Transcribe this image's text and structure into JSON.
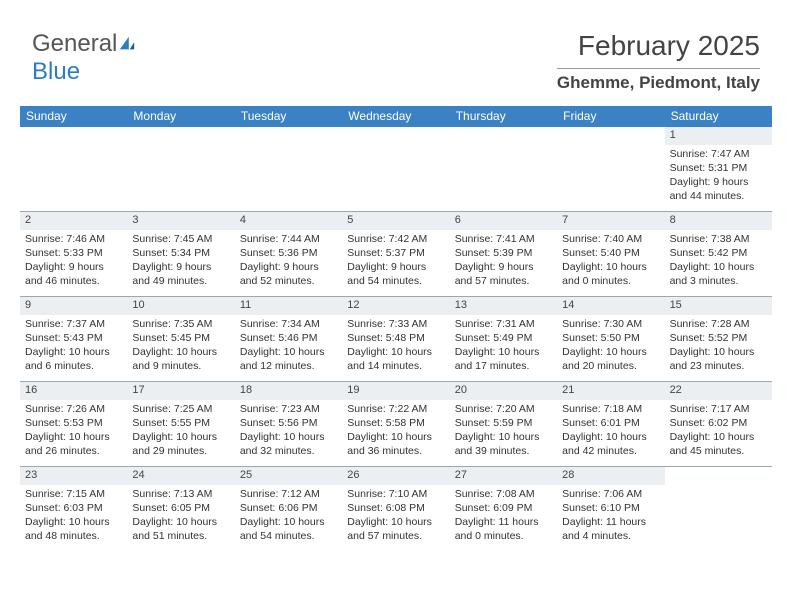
{
  "logo": {
    "line1": "General",
    "line2": "Blue"
  },
  "header": {
    "month": "February 2025",
    "location": "Ghemme, Piedmont, Italy"
  },
  "colors": {
    "header_bar": "#3a82c4",
    "daynum_bg": "#eceff2",
    "rule": "#9aa8b5",
    "logo_blue": "#2d7dc4"
  },
  "day_names": [
    "Sunday",
    "Monday",
    "Tuesday",
    "Wednesday",
    "Thursday",
    "Friday",
    "Saturday"
  ],
  "weeks": [
    [
      {
        "n": "",
        "sr": "",
        "ss": "",
        "dl": ""
      },
      {
        "n": "",
        "sr": "",
        "ss": "",
        "dl": ""
      },
      {
        "n": "",
        "sr": "",
        "ss": "",
        "dl": ""
      },
      {
        "n": "",
        "sr": "",
        "ss": "",
        "dl": ""
      },
      {
        "n": "",
        "sr": "",
        "ss": "",
        "dl": ""
      },
      {
        "n": "",
        "sr": "",
        "ss": "",
        "dl": ""
      },
      {
        "n": "1",
        "sr": "Sunrise: 7:47 AM",
        "ss": "Sunset: 5:31 PM",
        "dl": "Daylight: 9 hours and 44 minutes."
      }
    ],
    [
      {
        "n": "2",
        "sr": "Sunrise: 7:46 AM",
        "ss": "Sunset: 5:33 PM",
        "dl": "Daylight: 9 hours and 46 minutes."
      },
      {
        "n": "3",
        "sr": "Sunrise: 7:45 AM",
        "ss": "Sunset: 5:34 PM",
        "dl": "Daylight: 9 hours and 49 minutes."
      },
      {
        "n": "4",
        "sr": "Sunrise: 7:44 AM",
        "ss": "Sunset: 5:36 PM",
        "dl": "Daylight: 9 hours and 52 minutes."
      },
      {
        "n": "5",
        "sr": "Sunrise: 7:42 AM",
        "ss": "Sunset: 5:37 PM",
        "dl": "Daylight: 9 hours and 54 minutes."
      },
      {
        "n": "6",
        "sr": "Sunrise: 7:41 AM",
        "ss": "Sunset: 5:39 PM",
        "dl": "Daylight: 9 hours and 57 minutes."
      },
      {
        "n": "7",
        "sr": "Sunrise: 7:40 AM",
        "ss": "Sunset: 5:40 PM",
        "dl": "Daylight: 10 hours and 0 minutes."
      },
      {
        "n": "8",
        "sr": "Sunrise: 7:38 AM",
        "ss": "Sunset: 5:42 PM",
        "dl": "Daylight: 10 hours and 3 minutes."
      }
    ],
    [
      {
        "n": "9",
        "sr": "Sunrise: 7:37 AM",
        "ss": "Sunset: 5:43 PM",
        "dl": "Daylight: 10 hours and 6 minutes."
      },
      {
        "n": "10",
        "sr": "Sunrise: 7:35 AM",
        "ss": "Sunset: 5:45 PM",
        "dl": "Daylight: 10 hours and 9 minutes."
      },
      {
        "n": "11",
        "sr": "Sunrise: 7:34 AM",
        "ss": "Sunset: 5:46 PM",
        "dl": "Daylight: 10 hours and 12 minutes."
      },
      {
        "n": "12",
        "sr": "Sunrise: 7:33 AM",
        "ss": "Sunset: 5:48 PM",
        "dl": "Daylight: 10 hours and 14 minutes."
      },
      {
        "n": "13",
        "sr": "Sunrise: 7:31 AM",
        "ss": "Sunset: 5:49 PM",
        "dl": "Daylight: 10 hours and 17 minutes."
      },
      {
        "n": "14",
        "sr": "Sunrise: 7:30 AM",
        "ss": "Sunset: 5:50 PM",
        "dl": "Daylight: 10 hours and 20 minutes."
      },
      {
        "n": "15",
        "sr": "Sunrise: 7:28 AM",
        "ss": "Sunset: 5:52 PM",
        "dl": "Daylight: 10 hours and 23 minutes."
      }
    ],
    [
      {
        "n": "16",
        "sr": "Sunrise: 7:26 AM",
        "ss": "Sunset: 5:53 PM",
        "dl": "Daylight: 10 hours and 26 minutes."
      },
      {
        "n": "17",
        "sr": "Sunrise: 7:25 AM",
        "ss": "Sunset: 5:55 PM",
        "dl": "Daylight: 10 hours and 29 minutes."
      },
      {
        "n": "18",
        "sr": "Sunrise: 7:23 AM",
        "ss": "Sunset: 5:56 PM",
        "dl": "Daylight: 10 hours and 32 minutes."
      },
      {
        "n": "19",
        "sr": "Sunrise: 7:22 AM",
        "ss": "Sunset: 5:58 PM",
        "dl": "Daylight: 10 hours and 36 minutes."
      },
      {
        "n": "20",
        "sr": "Sunrise: 7:20 AM",
        "ss": "Sunset: 5:59 PM",
        "dl": "Daylight: 10 hours and 39 minutes."
      },
      {
        "n": "21",
        "sr": "Sunrise: 7:18 AM",
        "ss": "Sunset: 6:01 PM",
        "dl": "Daylight: 10 hours and 42 minutes."
      },
      {
        "n": "22",
        "sr": "Sunrise: 7:17 AM",
        "ss": "Sunset: 6:02 PM",
        "dl": "Daylight: 10 hours and 45 minutes."
      }
    ],
    [
      {
        "n": "23",
        "sr": "Sunrise: 7:15 AM",
        "ss": "Sunset: 6:03 PM",
        "dl": "Daylight: 10 hours and 48 minutes."
      },
      {
        "n": "24",
        "sr": "Sunrise: 7:13 AM",
        "ss": "Sunset: 6:05 PM",
        "dl": "Daylight: 10 hours and 51 minutes."
      },
      {
        "n": "25",
        "sr": "Sunrise: 7:12 AM",
        "ss": "Sunset: 6:06 PM",
        "dl": "Daylight: 10 hours and 54 minutes."
      },
      {
        "n": "26",
        "sr": "Sunrise: 7:10 AM",
        "ss": "Sunset: 6:08 PM",
        "dl": "Daylight: 10 hours and 57 minutes."
      },
      {
        "n": "27",
        "sr": "Sunrise: 7:08 AM",
        "ss": "Sunset: 6:09 PM",
        "dl": "Daylight: 11 hours and 0 minutes."
      },
      {
        "n": "28",
        "sr": "Sunrise: 7:06 AM",
        "ss": "Sunset: 6:10 PM",
        "dl": "Daylight: 11 hours and 4 minutes."
      },
      {
        "n": "",
        "sr": "",
        "ss": "",
        "dl": ""
      }
    ]
  ]
}
